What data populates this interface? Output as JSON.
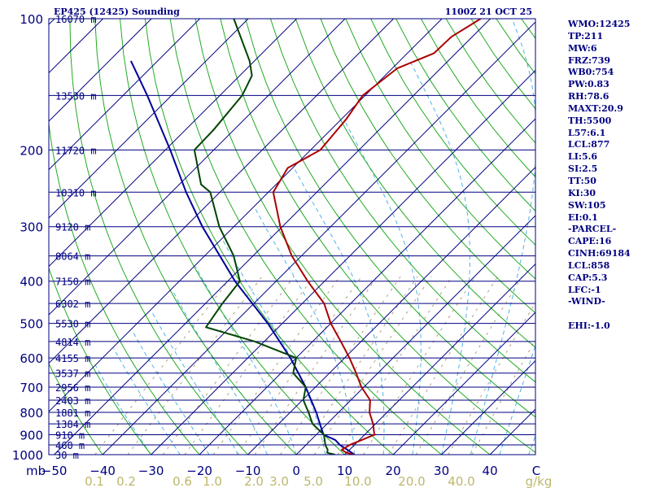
{
  "title_left": "EP425 (12425) Sounding",
  "title_right": "1100Z 21 OCT 25",
  "colors": {
    "frame": "#000080",
    "isobar": "#000080",
    "isotherm": "#000080",
    "dry_adiabat": "#22aa22",
    "moist_adiabat": "#4db3e6",
    "mixing_ratio": "#b0a080",
    "temperature": "#aa0000",
    "dewpoint": "#004400",
    "parcel": "#000099",
    "axis_label": "#000080",
    "mixing_label": "#bdb76b"
  },
  "chart_data": {
    "type": "skew-t log-p",
    "station": "EP425 (12425)",
    "time": "1100Z 21 OCT 25",
    "pressure_range_mb": [
      1000,
      100
    ],
    "temperature_range_c": [
      -50,
      50
    ],
    "pressure_ticks": [
      {
        "p": 100,
        "label": "100"
      },
      {
        "p": 200,
        "label": "200"
      },
      {
        "p": 300,
        "label": "300"
      },
      {
        "p": 400,
        "label": "400"
      },
      {
        "p": 500,
        "label": "500"
      },
      {
        "p": 600,
        "label": "600"
      },
      {
        "p": 700,
        "label": "700"
      },
      {
        "p": 800,
        "label": "800"
      },
      {
        "p": 900,
        "label": "900"
      },
      {
        "p": 1000,
        "label": "1000"
      }
    ],
    "x_axis_unit": "mb",
    "temperature_ticks": [
      {
        "t": -50,
        "label": "−50"
      },
      {
        "t": -40,
        "label": "−40"
      },
      {
        "t": -30,
        "label": "−30"
      },
      {
        "t": -20,
        "label": "−20"
      },
      {
        "t": -10,
        "label": "−10"
      },
      {
        "t": 0,
        "label": "0"
      },
      {
        "t": 10,
        "label": "10"
      },
      {
        "t": 20,
        "label": "20"
      },
      {
        "t": 30,
        "label": "30"
      },
      {
        "t": 40,
        "label": "40"
      }
    ],
    "temperature_unit": "C",
    "height_labels": [
      {
        "p": 100,
        "label": "16070 m"
      },
      {
        "p": 150,
        "label": "13530 m"
      },
      {
        "p": 200,
        "label": "11720 m"
      },
      {
        "p": 250,
        "label": "10310 m"
      },
      {
        "p": 300,
        "label": "9120 m"
      },
      {
        "p": 350,
        "label": "8064 m"
      },
      {
        "p": 400,
        "label": "7150 m"
      },
      {
        "p": 450,
        "label": "6302 m"
      },
      {
        "p": 500,
        "label": "5530 m"
      },
      {
        "p": 550,
        "label": "4814 m"
      },
      {
        "p": 600,
        "label": "4155 m"
      },
      {
        "p": 650,
        "label": "3537 m"
      },
      {
        "p": 700,
        "label": "2956 m"
      },
      {
        "p": 750,
        "label": "2403 m"
      },
      {
        "p": 800,
        "label": "1881 m"
      },
      {
        "p": 850,
        "label": "1384 m"
      },
      {
        "p": 900,
        "label": "910 m"
      },
      {
        "p": 950,
        "label": "460 m"
      },
      {
        "p": 1000,
        "label": "30 m"
      }
    ],
    "mixing_ratio_labels": [
      {
        "w": 0.1,
        "label": "0.1"
      },
      {
        "w": 0.2,
        "label": "0.2"
      },
      {
        "w": 0.6,
        "label": "0.6"
      },
      {
        "w": 1.0,
        "label": "1.0"
      },
      {
        "w": 2.0,
        "label": "2.0"
      },
      {
        "w": 3.0,
        "label": "3.0"
      },
      {
        "w": 5.0,
        "label": "5.0"
      },
      {
        "w": 10.0,
        "label": "10.0"
      },
      {
        "w": 20.0,
        "label": "20.0"
      },
      {
        "w": 40.0,
        "label": "40.0"
      }
    ],
    "mixing_ratio_unit": "g/kg",
    "temperature_profile": [
      {
        "p": 1000,
        "t": 12.0
      },
      {
        "p": 990,
        "t": 10.0
      },
      {
        "p": 975,
        "t": 8.4
      },
      {
        "p": 950,
        "t": 9.0
      },
      {
        "p": 925,
        "t": 10.5
      },
      {
        "p": 900,
        "t": 12.0
      },
      {
        "p": 850,
        "t": 9.5
      },
      {
        "p": 800,
        "t": 6.4
      },
      {
        "p": 750,
        "t": 4.0
      },
      {
        "p": 700,
        "t": -0.5
      },
      {
        "p": 650,
        "t": -4.5
      },
      {
        "p": 600,
        "t": -9.0
      },
      {
        "p": 550,
        "t": -14.2
      },
      {
        "p": 500,
        "t": -20.0
      },
      {
        "p": 450,
        "t": -25.5
      },
      {
        "p": 400,
        "t": -33.5
      },
      {
        "p": 350,
        "t": -42.0
      },
      {
        "p": 300,
        "t": -50.4
      },
      {
        "p": 250,
        "t": -59.0
      },
      {
        "p": 220,
        "t": -61.0
      },
      {
        "p": 200,
        "t": -58.0
      },
      {
        "p": 170,
        "t": -59.0
      },
      {
        "p": 150,
        "t": -60.5
      },
      {
        "p": 130,
        "t": -59.0
      },
      {
        "p": 120,
        "t": -54.5
      },
      {
        "p": 110,
        "t": -54.3
      },
      {
        "p": 100,
        "t": -52.0
      }
    ],
    "dewpoint_profile": [
      {
        "p": 1000,
        "t": 8.0
      },
      {
        "p": 990,
        "t": 6.0
      },
      {
        "p": 975,
        "t": 5.5
      },
      {
        "p": 950,
        "t": 4.0
      },
      {
        "p": 900,
        "t": 1.6
      },
      {
        "p": 850,
        "t": -3.0
      },
      {
        "p": 800,
        "t": -6.2
      },
      {
        "p": 750,
        "t": -9.8
      },
      {
        "p": 700,
        "t": -12.0
      },
      {
        "p": 650,
        "t": -17.5
      },
      {
        "p": 600,
        "t": -20.0
      },
      {
        "p": 550,
        "t": -32.0
      },
      {
        "p": 510,
        "t": -45.0
      },
      {
        "p": 450,
        "t": -46.5
      },
      {
        "p": 400,
        "t": -47.5
      },
      {
        "p": 350,
        "t": -54.0
      },
      {
        "p": 300,
        "t": -63.0
      },
      {
        "p": 250,
        "t": -72.0
      },
      {
        "p": 240,
        "t": -75.5
      },
      {
        "p": 200,
        "t": -84.0
      },
      {
        "p": 180,
        "t": -84.2
      },
      {
        "p": 150,
        "t": -85.4
      },
      {
        "p": 135,
        "t": -87.5
      },
      {
        "p": 125,
        "t": -91.0
      },
      {
        "p": 100,
        "t": -103.0
      }
    ],
    "parcel_profile": [
      {
        "p": 1000,
        "t": 12.0
      },
      {
        "p": 975,
        "t": 9.6
      },
      {
        "p": 950,
        "t": 7.0
      },
      {
        "p": 925,
        "t": 5.0
      },
      {
        "p": 900,
        "t": 1.5
      },
      {
        "p": 858,
        "t": -1.0
      },
      {
        "p": 800,
        "t": -4.6
      },
      {
        "p": 700,
        "t": -12.0
      },
      {
        "p": 600,
        "t": -21.2
      },
      {
        "p": 500,
        "t": -33.0
      },
      {
        "p": 400,
        "t": -48.5
      },
      {
        "p": 300,
        "t": -66.5
      },
      {
        "p": 250,
        "t": -77.0
      },
      {
        "p": 200,
        "t": -89.0
      },
      {
        "p": 150,
        "t": -105.0
      },
      {
        "p": 125,
        "t": -115.5
      }
    ]
  },
  "indices": [
    {
      "label": "WMO",
      "value": "12425"
    },
    {
      "label": "TP",
      "value": "211"
    },
    {
      "label": "MW",
      "value": "6"
    },
    {
      "label": "FRZ",
      "value": "739"
    },
    {
      "label": "WB0",
      "value": "754"
    },
    {
      "label": "PW",
      "value": "0.83"
    },
    {
      "label": "RH",
      "value": "78.6"
    },
    {
      "label": "MAXT",
      "value": "20.9"
    },
    {
      "label": "TH",
      "value": "5500"
    },
    {
      "label": "L57",
      "value": "6.1"
    },
    {
      "label": "LCL",
      "value": "877"
    },
    {
      "label": "LI",
      "value": "5.6"
    },
    {
      "label": "SI",
      "value": "2.5"
    },
    {
      "label": "TT",
      "value": "50"
    },
    {
      "label": "KI",
      "value": "30"
    },
    {
      "label": "SW",
      "value": "105"
    },
    {
      "label": "EI",
      "value": "0.1"
    },
    {
      "label": "",
      "value": "-PARCEL-"
    },
    {
      "label": "CAPE",
      "value": "16"
    },
    {
      "label": "CINH",
      "value": "69184"
    },
    {
      "label": "LCL",
      "value": "858"
    },
    {
      "label": "CAP",
      "value": "5.3"
    },
    {
      "label": "LFC",
      "value": "-1"
    },
    {
      "label": "",
      "value": "-WIND-"
    },
    {
      "label": "",
      "value": ""
    },
    {
      "label": "EHI",
      "value": "-1.0"
    }
  ]
}
